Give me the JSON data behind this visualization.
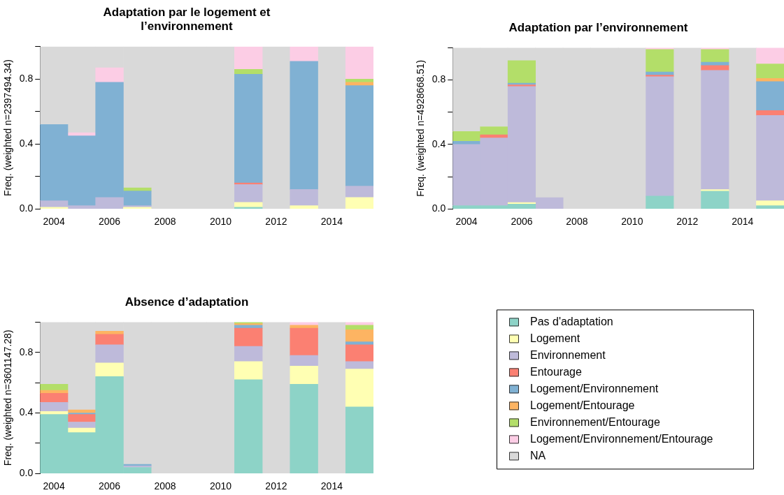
{
  "chart_data": [
    {
      "type": "bar",
      "title": "Adaptation par le logement et\nl’environnement",
      "ylabel": "Freq. (weighted n=2397494.34)",
      "stacked": true,
      "categories": [
        "2004",
        null,
        "2006",
        null,
        "2008",
        null,
        "2010",
        null,
        "2012",
        null,
        "2014",
        null
      ],
      "ylim": [
        0,
        1
      ],
      "yticks": [
        {
          "value": 0,
          "label": "0.0"
        },
        {
          "value": 0.2,
          "label": null
        },
        {
          "value": 0.4,
          "label": "0.4"
        },
        {
          "value": 0.6,
          "label": null
        },
        {
          "value": 0.8,
          "label": "0.8"
        },
        {
          "value": 1,
          "label": null
        }
      ],
      "series": [
        {
          "color": "#8dd3c7",
          "values": [
            null,
            null,
            null,
            null,
            null,
            null,
            null,
            0.01,
            null,
            null,
            null,
            null
          ]
        },
        {
          "color": "#ffffb3",
          "values": [
            0.01,
            null,
            null,
            0.01,
            null,
            null,
            null,
            0.03,
            null,
            0.02,
            null,
            0.07
          ]
        },
        {
          "color": "#bebada",
          "values": [
            0.04,
            0.02,
            0.07,
            0.01,
            null,
            null,
            null,
            0.11,
            null,
            0.1,
            null,
            0.07
          ]
        },
        {
          "color": "#fb8072",
          "values": [
            null,
            null,
            null,
            null,
            null,
            null,
            null,
            0.01,
            null,
            null,
            null,
            null
          ]
        },
        {
          "color": "#80b1d3",
          "values": [
            0.47,
            0.43,
            0.71,
            0.09,
            null,
            null,
            null,
            0.67,
            null,
            0.79,
            null,
            0.62
          ]
        },
        {
          "color": "#fdb462",
          "values": [
            null,
            null,
            null,
            null,
            null,
            null,
            null,
            null,
            null,
            null,
            null,
            0.02
          ]
        },
        {
          "color": "#b3de69",
          "values": [
            null,
            null,
            null,
            0.02,
            null,
            null,
            null,
            0.03,
            null,
            null,
            null,
            0.02
          ]
        },
        {
          "color": "#fccde5",
          "values": [
            null,
            0.02,
            0.09,
            null,
            null,
            null,
            null,
            0.14,
            null,
            0.09,
            null,
            0.2
          ]
        },
        {
          "color": "#d9d9d9",
          "values": [
            0.48,
            0.53,
            0.13,
            0.87,
            1,
            1,
            1,
            null,
            1,
            null,
            1,
            null
          ]
        }
      ]
    },
    {
      "type": "bar",
      "title": "Adaptation par l’environnement",
      "ylabel": "Freq. (weighted n=4928668.51)",
      "stacked": true,
      "categories": [
        "2004",
        null,
        "2006",
        null,
        "2008",
        null,
        "2010",
        null,
        "2012",
        null,
        "2014",
        null
      ],
      "ylim": [
        0,
        1
      ],
      "yticks": [
        {
          "value": 0,
          "label": "0.0"
        },
        {
          "value": 0.2,
          "label": null
        },
        {
          "value": 0.4,
          "label": "0.4"
        },
        {
          "value": 0.6,
          "label": null
        },
        {
          "value": 0.8,
          "label": "0.8"
        },
        {
          "value": 1,
          "label": null
        }
      ],
      "series": [
        {
          "color": "#8dd3c7",
          "values": [
            0.02,
            0.02,
            0.03,
            null,
            null,
            null,
            null,
            0.08,
            null,
            0.11,
            null,
            0.02
          ]
        },
        {
          "color": "#ffffb3",
          "values": [
            null,
            null,
            0.01,
            null,
            null,
            null,
            null,
            null,
            null,
            0.01,
            null,
            0.03
          ]
        },
        {
          "color": "#bebada",
          "values": [
            0.38,
            0.42,
            0.72,
            0.07,
            null,
            null,
            null,
            0.74,
            null,
            0.74,
            null,
            0.53
          ]
        },
        {
          "color": "#fb8072",
          "values": [
            null,
            0.02,
            0.01,
            null,
            null,
            null,
            null,
            0.01,
            null,
            0.03,
            null,
            0.03
          ]
        },
        {
          "color": "#80b1d3",
          "values": [
            0.02,
            null,
            0.01,
            null,
            null,
            null,
            null,
            0.02,
            null,
            0.02,
            null,
            0.18
          ]
        },
        {
          "color": "#fdb462",
          "values": [
            null,
            null,
            null,
            null,
            null,
            null,
            null,
            null,
            null,
            null,
            null,
            0.02
          ]
        },
        {
          "color": "#b3de69",
          "values": [
            0.06,
            0.05,
            0.14,
            null,
            null,
            null,
            null,
            0.14,
            null,
            0.08,
            null,
            0.09
          ]
        },
        {
          "color": "#fccde5",
          "values": [
            null,
            null,
            null,
            null,
            null,
            null,
            null,
            0.01,
            null,
            0.01,
            null,
            0.1
          ]
        },
        {
          "color": "#d9d9d9",
          "values": [
            0.52,
            0.49,
            0.08,
            0.93,
            1,
            1,
            1,
            null,
            1,
            null,
            1,
            null
          ]
        }
      ]
    },
    {
      "type": "bar",
      "title": "Absence d’adaptation",
      "ylabel": "Freq. (weighted n=3601147.28)",
      "stacked": true,
      "legend": "right",
      "categories": [
        "2004",
        null,
        "2006",
        null,
        "2008",
        null,
        "2010",
        null,
        "2012",
        null,
        "2014",
        null
      ],
      "ylim": [
        0,
        1
      ],
      "yticks": [
        {
          "value": 0,
          "label": "0.0"
        },
        {
          "value": 0.2,
          "label": null
        },
        {
          "value": 0.4,
          "label": "0.4"
        },
        {
          "value": 0.6,
          "label": null
        },
        {
          "value": 0.8,
          "label": "0.8"
        },
        {
          "value": 1,
          "label": null
        }
      ],
      "series": [
        {
          "name": "Pas d'adaptation",
          "color": "#8dd3c7",
          "values": [
            0.39,
            0.27,
            0.64,
            0.04,
            null,
            null,
            null,
            0.62,
            null,
            0.59,
            null,
            0.44
          ]
        },
        {
          "name": "Logement",
          "color": "#ffffb3",
          "values": [
            0.02,
            0.03,
            0.09,
            null,
            null,
            null,
            null,
            0.12,
            null,
            0.12,
            null,
            0.25
          ]
        },
        {
          "name": "Environnement",
          "color": "#bebada",
          "values": [
            0.06,
            0.04,
            0.12,
            0.01,
            null,
            null,
            null,
            0.1,
            null,
            0.07,
            null,
            0.05
          ]
        },
        {
          "name": "Entourage",
          "color": "#fb8072",
          "values": [
            0.06,
            0.05,
            0.07,
            null,
            null,
            null,
            null,
            0.12,
            null,
            0.18,
            null,
            0.11
          ]
        },
        {
          "name": "Logement/Environnement",
          "color": "#80b1d3",
          "values": [
            null,
            0.01,
            null,
            0.01,
            null,
            null,
            null,
            0.02,
            null,
            null,
            null,
            0.02
          ]
        },
        {
          "name": "Logement/Entourage",
          "color": "#fdb462",
          "values": [
            0.02,
            0.02,
            0.02,
            null,
            null,
            null,
            null,
            0.01,
            null,
            0.02,
            null,
            0.08
          ]
        },
        {
          "name": "Environnement/Entourage",
          "color": "#b3de69",
          "values": [
            0.04,
            null,
            null,
            null,
            null,
            null,
            null,
            0.01,
            null,
            null,
            null,
            0.03
          ]
        },
        {
          "name": "Logement/Environnement/Entourage",
          "color": "#fccde5",
          "values": [
            null,
            null,
            null,
            null,
            null,
            null,
            null,
            null,
            null,
            0.02,
            null,
            0.02
          ]
        },
        {
          "name": "NA",
          "color": "#d9d9d9",
          "values": [
            0.41,
            0.58,
            0.06,
            0.94,
            1,
            1,
            1,
            null,
            1,
            null,
            1,
            null
          ]
        }
      ]
    }
  ]
}
